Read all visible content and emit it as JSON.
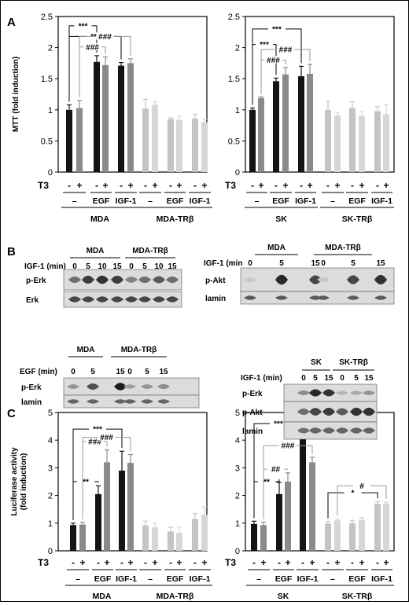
{
  "panels": {
    "A": "A",
    "B": "B",
    "C": "C"
  },
  "colors": {
    "black": "#141414",
    "dark_gray": "#8a8a8a",
    "light_gray": "#c4c4c4",
    "lighter_gray": "#d6d6d6"
  },
  "chart_data": [
    {
      "type": "bar",
      "panel": "A-left",
      "ylabel": "MTT (fold induction)",
      "ylim": [
        0,
        2.5
      ],
      "yticks": [
        "0",
        "0.5",
        "1",
        "1.5",
        "2",
        "2.5"
      ],
      "row_label": "T3",
      "t3": [
        "-",
        "+",
        "-",
        "+",
        "-",
        "+",
        "-",
        "+",
        "-",
        "+",
        "-",
        "+"
      ],
      "treatments": [
        "–",
        "EGF",
        "IGF-1",
        "–",
        "EGF",
        "IGF-1"
      ],
      "groups": [
        "MDA",
        "MDA-TRβ"
      ],
      "values": [
        1.0,
        1.03,
        1.77,
        1.72,
        1.71,
        1.75,
        1.02,
        1.08,
        0.85,
        0.84,
        0.86,
        0.8
      ],
      "errors": [
        0.08,
        0.12,
        0.1,
        0.13,
        0.05,
        0.07,
        0.15,
        0.05,
        0.02,
        0.06,
        0.07,
        0.05
      ],
      "colors": [
        "#141414",
        "#8a8a8a",
        "#141414",
        "#8a8a8a",
        "#141414",
        "#8a8a8a",
        "#c4c4c4",
        "#d6d6d6",
        "#c4c4c4",
        "#d6d6d6",
        "#c4c4c4",
        "#d6d6d6"
      ],
      "annotations": [
        {
          "from": 0,
          "to": 2,
          "y": 2.35,
          "label": "***",
          "gray": false
        },
        {
          "from": 0,
          "to": 4,
          "y": 2.18,
          "label": "***",
          "gray": false
        },
        {
          "from": 1,
          "to": 3,
          "y": 2.01,
          "label": "###",
          "gray": true
        },
        {
          "from": 1,
          "to": 5,
          "y": 2.18,
          "label": "###",
          "gray": true
        }
      ]
    },
    {
      "type": "bar",
      "panel": "A-right",
      "ylabel": "",
      "ylim": [
        0,
        2.5
      ],
      "yticks": [
        "0",
        "0.5",
        "1",
        "1.5",
        "2",
        "2.5"
      ],
      "row_label": "T3",
      "t3": [
        "-",
        "+",
        "-",
        "+",
        "-",
        "+",
        "-",
        "+",
        "-",
        "+",
        "-",
        "+"
      ],
      "treatments": [
        "–",
        "EGF",
        "IGF-1",
        "–",
        "EGF",
        "IGF-1"
      ],
      "groups": [
        "SK",
        "SK-TRβ"
      ],
      "values": [
        1.0,
        1.19,
        1.46,
        1.57,
        1.54,
        1.58,
        1.0,
        0.91,
        1.03,
        0.9,
        0.98,
        0.93
      ],
      "errors": [
        0.03,
        0.02,
        0.05,
        0.11,
        0.16,
        0.15,
        0.14,
        0.05,
        0.1,
        0.07,
        0.07,
        0.16
      ],
      "colors": [
        "#141414",
        "#8a8a8a",
        "#141414",
        "#8a8a8a",
        "#141414",
        "#8a8a8a",
        "#c4c4c4",
        "#d6d6d6",
        "#c4c4c4",
        "#d6d6d6",
        "#c4c4c4",
        "#d6d6d6"
      ],
      "annotations": [
        {
          "from": 0,
          "to": 2,
          "y": 2.05,
          "label": "***",
          "gray": false
        },
        {
          "from": 0,
          "to": 4,
          "y": 2.3,
          "label": "***",
          "gray": false
        },
        {
          "from": 1,
          "to": 3,
          "y": 1.8,
          "label": "###",
          "gray": true
        },
        {
          "from": 1,
          "to": 5,
          "y": 1.97,
          "label": "###",
          "gray": true
        }
      ]
    },
    {
      "type": "bar",
      "panel": "C-left",
      "ylabel": "Luciferase activity (fold induction)",
      "ylabel_lines": [
        "Luciferase activity",
        "(fold induction)"
      ],
      "ylim": [
        0,
        5
      ],
      "yticks": [
        "0",
        "1",
        "2",
        "3",
        "4",
        "5"
      ],
      "row_label": "T3",
      "t3": [
        "-",
        "+",
        "-",
        "+",
        "-",
        "+",
        "-",
        "+",
        "-",
        "+",
        "-",
        "+"
      ],
      "treatments": [
        "–",
        "EGF",
        "IGF-1",
        "–",
        "EGF",
        "IGF-1"
      ],
      "groups": [
        "MDA",
        "MDA-TRβ"
      ],
      "values": [
        0.93,
        0.95,
        2.05,
        3.2,
        2.9,
        3.18,
        0.92,
        0.85,
        0.7,
        0.65,
        1.15,
        1.3
      ],
      "errors": [
        0.07,
        0.08,
        0.3,
        0.45,
        0.7,
        0.3,
        0.15,
        0.15,
        0.15,
        0.2,
        0.2,
        0.3
      ],
      "colors": [
        "#141414",
        "#8a8a8a",
        "#141414",
        "#8a8a8a",
        "#141414",
        "#8a8a8a",
        "#c4c4c4",
        "#d6d6d6",
        "#c4c4c4",
        "#d6d6d6",
        "#c4c4c4",
        "#d6d6d6"
      ],
      "annotations": [
        {
          "from": 0,
          "to": 2,
          "y": 2.5,
          "label": "**",
          "gray": false
        },
        {
          "from": 0,
          "to": 4,
          "y": 4.4,
          "label": "***",
          "gray": false
        },
        {
          "from": 1,
          "to": 3,
          "y": 3.95,
          "label": "###",
          "gray": true
        },
        {
          "from": 1,
          "to": 5,
          "y": 4.1,
          "label": "###",
          "gray": true
        }
      ]
    },
    {
      "type": "bar",
      "panel": "C-right",
      "ylabel": "",
      "ylim": [
        0,
        5
      ],
      "yticks": [
        "0",
        "1",
        "2",
        "3",
        "4",
        "5"
      ],
      "row_label": "T3",
      "t3": [
        "-",
        "+",
        "-",
        "+",
        "-",
        "+",
        "-",
        "+",
        "-",
        "+",
        "-",
        "+"
      ],
      "treatments": [
        "–",
        "EGF",
        "IGF-1",
        "–",
        "EGF",
        "IGF-1"
      ],
      "groups": [
        "SK",
        "SK-TRβ"
      ],
      "values": [
        0.97,
        0.93,
        2.05,
        2.5,
        4.2,
        3.2,
        0.98,
        1.1,
        1.0,
        1.12,
        1.7,
        1.7
      ],
      "errors": [
        0.1,
        0.1,
        0.42,
        0.32,
        0.2,
        0.18,
        0.08,
        0.06,
        0.1,
        0.08,
        0.08,
        0.06
      ],
      "colors": [
        "#141414",
        "#8a8a8a",
        "#141414",
        "#8a8a8a",
        "#141414",
        "#8a8a8a",
        "#c4c4c4",
        "#d6d6d6",
        "#c4c4c4",
        "#d6d6d6",
        "#c4c4c4",
        "#d6d6d6"
      ],
      "annotations": [
        {
          "from": 0,
          "to": 2,
          "y": 2.5,
          "label": "**",
          "gray": false
        },
        {
          "from": 0,
          "to": 4,
          "y": 4.6,
          "label": "***",
          "gray": false
        },
        {
          "from": 1,
          "to": 3,
          "y": 2.95,
          "label": "##",
          "gray": true
        },
        {
          "from": 1,
          "to": 5,
          "y": 3.8,
          "label": "###",
          "gray": true
        },
        {
          "from": 6,
          "to": 10,
          "y": 2.1,
          "label": "*",
          "gray": false
        },
        {
          "from": 7,
          "to": 11,
          "y": 2.35,
          "label": "#",
          "gray": true
        }
      ]
    }
  ],
  "blots": {
    "b1": {
      "groups": [
        "MDA",
        "MDA-TRβ"
      ],
      "time_label": "IGF-1 (min)",
      "times": [
        "0",
        "5",
        "10",
        "15",
        "0",
        "5",
        "10",
        "15"
      ],
      "rows": [
        "p-Erk",
        "Erk"
      ]
    },
    "b2": {
      "groups": [
        "MDA",
        "MDA-TRβ"
      ],
      "time_label": "IGF-1 (min",
      "times": [
        "0",
        "5",
        "15",
        "0",
        "5",
        "15"
      ],
      "rows": [
        "p-Akt",
        "lamin"
      ]
    },
    "b3": {
      "groups": [
        "MDA",
        "MDA-TRβ"
      ],
      "time_label": "EGF (min)",
      "times": [
        "0",
        "5",
        "15",
        "0",
        "5",
        "15"
      ],
      "rows": [
        "p-Erk",
        "lamin"
      ]
    },
    "b4": {
      "groups": [
        "SK",
        "SK-TRβ"
      ],
      "time_label": "IGF-1 (min)",
      "times": [
        "0",
        "5",
        "15",
        "0",
        "5",
        "15"
      ],
      "rows": [
        "p-Erk",
        "p-Akt",
        "lamin"
      ]
    }
  }
}
